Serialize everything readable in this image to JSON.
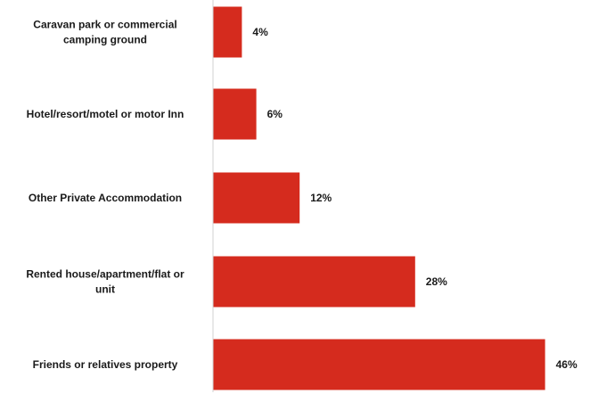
{
  "chart_data": {
    "type": "bar",
    "orientation": "horizontal",
    "categories": [
      "Caravan park or commercial camping ground",
      "Hotel/resort/motel or motor Inn",
      "Other Private Accommodation",
      "Rented house/apartment/flat or unit",
      "Friends or relatives property"
    ],
    "category_lines": [
      [
        "Caravan park or commercial",
        "camping ground"
      ],
      [
        "Hotel/resort/motel or motor Inn"
      ],
      [
        "Other Private Accommodation"
      ],
      [
        "Rented house/apartment/flat or",
        "unit"
      ],
      [
        "Friends or relatives property"
      ]
    ],
    "values": [
      4,
      6,
      12,
      28,
      46
    ],
    "data_labels": [
      "4%",
      "6%",
      "12%",
      "28%",
      "46%"
    ],
    "title": "",
    "xlabel": "",
    "ylabel": "",
    "xlim": [
      0,
      50
    ],
    "grid": false,
    "legend": "none",
    "bar_color": "#d52b1e",
    "axis_color": "#d0d0d0"
  }
}
